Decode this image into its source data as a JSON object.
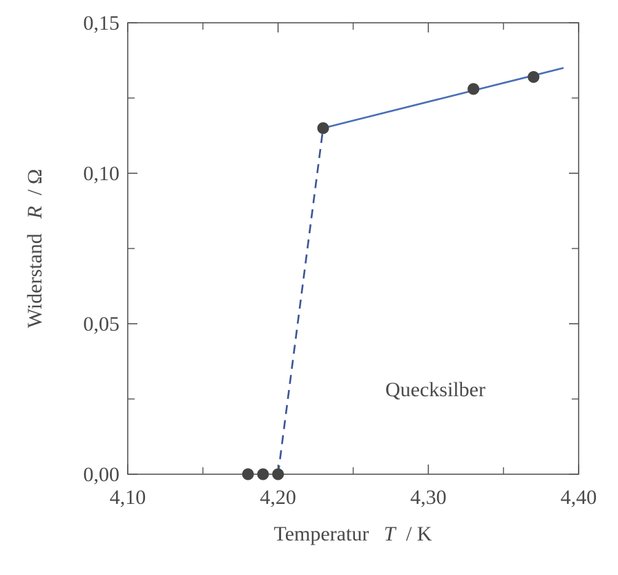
{
  "chart_data": {
    "type": "scatter",
    "xlabel_word": "Temperatur",
    "xlabel_symbol": "T",
    "xlabel_unit": "/ K",
    "ylabel_word": "Widerstand",
    "ylabel_symbol": "R",
    "ylabel_unit": "/ Ω",
    "xlim": [
      4.1,
      4.4
    ],
    "ylim": [
      0.0,
      0.15
    ],
    "x_ticks": [
      4.1,
      4.2,
      4.3,
      4.4
    ],
    "x_tick_labels": [
      "4,10",
      "4,20",
      "4,30",
      "4,40"
    ],
    "x_minor_ticks": [
      4.15,
      4.25,
      4.35
    ],
    "y_ticks": [
      0.0,
      0.05,
      0.1,
      0.15
    ],
    "y_tick_labels": [
      "0,00",
      "0,05",
      "0,10",
      "0,15"
    ],
    "y_minor_ticks": [
      0.025,
      0.075,
      0.125
    ],
    "grid": false,
    "annotation": "Quecksilber",
    "colors": {
      "line": "#4a6fb5",
      "points": "#444444",
      "axis": "#555555"
    },
    "series": [
      {
        "kind": "points",
        "x": [
          4.18,
          4.19,
          4.2,
          4.23,
          4.33,
          4.37
        ],
        "y": [
          0.0,
          0.0,
          0.0,
          0.115,
          0.128,
          0.132
        ]
      },
      {
        "kind": "dashed-line",
        "x": [
          4.2,
          4.23
        ],
        "y": [
          0.0,
          0.115
        ]
      },
      {
        "kind": "solid-line",
        "x": [
          4.23,
          4.39
        ],
        "y": [
          0.115,
          0.135
        ]
      }
    ]
  }
}
